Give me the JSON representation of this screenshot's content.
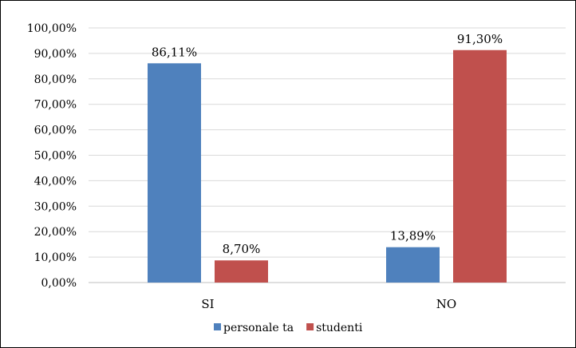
{
  "chart_data": {
    "type": "bar",
    "title": "",
    "xlabel": "",
    "ylabel": "",
    "categories": [
      "SI",
      "NO"
    ],
    "series": [
      {
        "name": "personale ta",
        "color": "#4f81bd",
        "values": [
          86.11,
          13.89
        ],
        "labels": [
          "86,11%",
          "13,89%"
        ]
      },
      {
        "name": "studenti",
        "color": "#c0504d",
        "values": [
          8.7,
          91.3
        ],
        "labels": [
          "8,70%",
          "91,30%"
        ]
      }
    ],
    "ylim": [
      0,
      100
    ],
    "yticks": [
      0,
      10,
      20,
      30,
      40,
      50,
      60,
      70,
      80,
      90,
      100
    ],
    "ytick_labels": [
      "0,00%",
      "10,00%",
      "20,00%",
      "30,00%",
      "40,00%",
      "50,00%",
      "60,00%",
      "70,00%",
      "80,00%",
      "90,00%",
      "100,00%"
    ],
    "grid": true,
    "legend_position": "bottom"
  }
}
